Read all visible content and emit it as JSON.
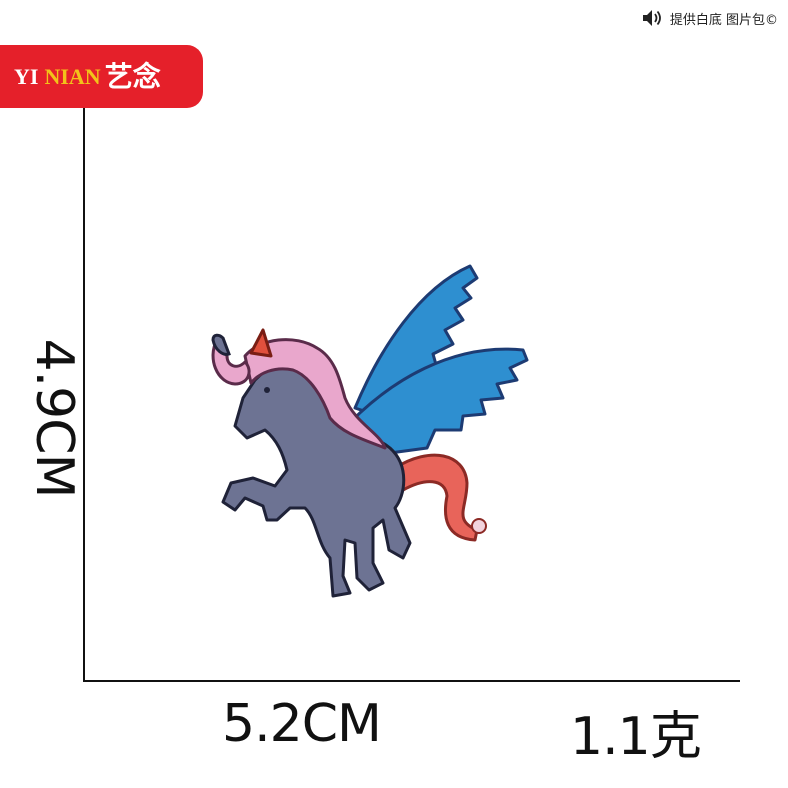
{
  "header": {
    "notice": "提供白底 图片包©",
    "icon": "speaker-icon"
  },
  "brand": {
    "latin_part1": "YI",
    "latin_part2": "NIAN",
    "chinese": "艺念",
    "bg_color": "#e5202a",
    "accent_color": "#f2c21a"
  },
  "product": {
    "width_label": "5.2CM",
    "height_label": "4.9CM",
    "weight_label": "1.1克",
    "subject": "unicorn-embroidered-patch",
    "colors": {
      "body": "#6d7393",
      "wings": "#2e8fd0",
      "mane": "#e9a7cc",
      "tail": "#e8645a",
      "horn": "#e0503d"
    }
  }
}
